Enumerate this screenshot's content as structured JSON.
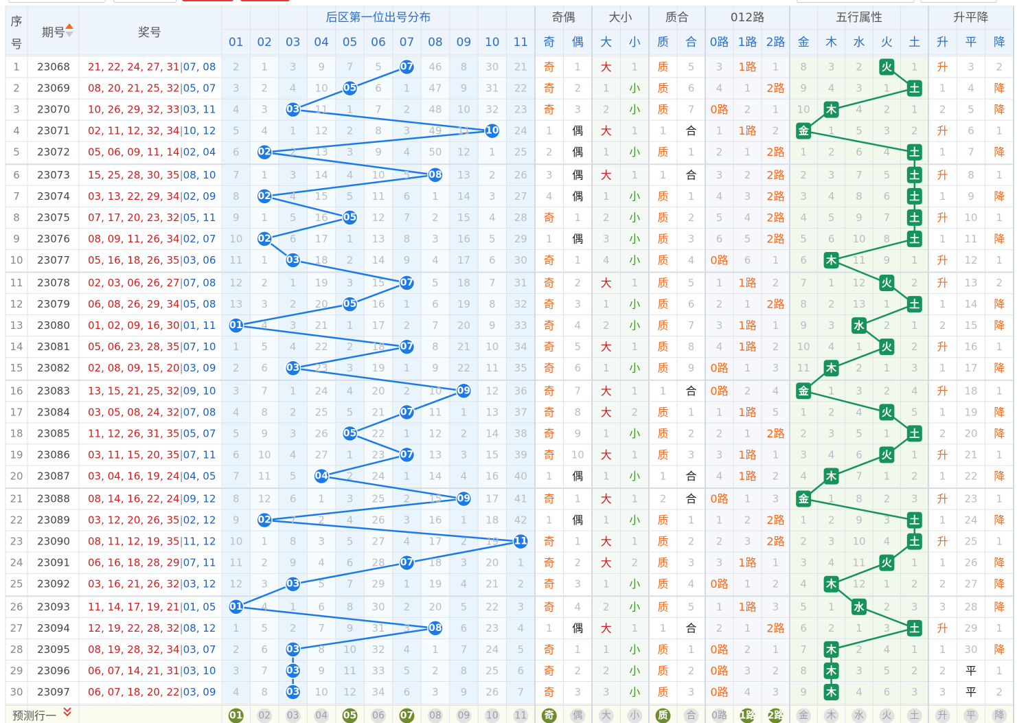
{
  "header": {
    "seq_label": "序号",
    "issue_label": "期号",
    "numbers_label": "奖号",
    "distribution_title": "后区第一位出号分布",
    "groups": [
      "奇偶",
      "大小",
      "质合",
      "012路",
      "五行属性",
      "升平降"
    ],
    "dist_cols": [
      "01",
      "02",
      "03",
      "04",
      "05",
      "06",
      "07",
      "08",
      "09",
      "10",
      "11"
    ],
    "parity_cols": [
      "奇",
      "偶"
    ],
    "size_cols": [
      "大",
      "小"
    ],
    "prime_cols": [
      "质",
      "合"
    ],
    "route_cols": [
      "0路",
      "1路",
      "2路"
    ],
    "element_cols": [
      "金",
      "木",
      "水",
      "火",
      "土"
    ],
    "trend_cols": [
      "升",
      "平",
      "降"
    ]
  },
  "rows": [
    {
      "seq": "1",
      "issue": "23068",
      "front": "21, 22, 24, 27, 31",
      "back": "07, 08",
      "d": [
        2,
        1,
        3,
        9,
        7,
        5,
        "07",
        46,
        8,
        30,
        21
      ],
      "par": [
        "奇",
        1
      ],
      "siz": [
        "大",
        1
      ],
      "pri": [
        "质",
        5
      ],
      "rt": [
        3,
        "1路",
        1
      ],
      "el": [
        8,
        3,
        2,
        "火",
        1
      ],
      "tr": [
        "升",
        3,
        2
      ]
    },
    {
      "seq": "2",
      "issue": "23069",
      "front": "08, 20, 21, 25, 32",
      "back": "05, 07",
      "d": [
        3,
        2,
        4,
        10,
        "05",
        6,
        1,
        47,
        9,
        31,
        22
      ],
      "par": [
        "奇",
        2
      ],
      "siz": [
        1,
        "小"
      ],
      "pri": [
        "质",
        6
      ],
      "rt": [
        4,
        1,
        "2路"
      ],
      "el": [
        9,
        4,
        3,
        1,
        "土"
      ],
      "tr": [
        1,
        4,
        "降"
      ]
    },
    {
      "seq": "3",
      "issue": "23070",
      "front": "10, 26, 29, 32, 33",
      "back": "03, 11",
      "d": [
        4,
        3,
        "03",
        11,
        1,
        7,
        2,
        48,
        10,
        32,
        23
      ],
      "par": [
        "奇",
        3
      ],
      "siz": [
        2,
        "小"
      ],
      "pri": [
        "质",
        7
      ],
      "rt": [
        "0路",
        2,
        1
      ],
      "el": [
        10,
        "木",
        4,
        2,
        1
      ],
      "tr": [
        2,
        5,
        "降"
      ]
    },
    {
      "seq": "4",
      "issue": "23071",
      "front": "02, 11, 12, 32, 34",
      "back": "10, 12",
      "d": [
        5,
        4,
        1,
        12,
        2,
        8,
        3,
        49,
        11,
        "10",
        24
      ],
      "par": [
        1,
        "偶"
      ],
      "siz": [
        "大",
        1
      ],
      "pri": [
        1,
        "合"
      ],
      "rt": [
        1,
        "1路",
        2
      ],
      "el": [
        "金",
        1,
        5,
        3,
        2
      ],
      "tr": [
        "升",
        6,
        1
      ]
    },
    {
      "seq": "5",
      "issue": "23072",
      "front": "05, 06, 09, 11, 14",
      "back": "02, 04",
      "d": [
        6,
        "02",
        2,
        13,
        3,
        9,
        4,
        50,
        12,
        1,
        25
      ],
      "par": [
        2,
        "偶"
      ],
      "siz": [
        1,
        "小"
      ],
      "pri": [
        "质",
        1
      ],
      "rt": [
        2,
        1,
        "2路"
      ],
      "el": [
        1,
        2,
        6,
        4,
        "土"
      ],
      "tr": [
        1,
        7,
        "降"
      ]
    },
    {
      "seq": "6",
      "issue": "23073",
      "front": "15, 25, 28, 30, 35",
      "back": "08, 10",
      "d": [
        7,
        1,
        3,
        14,
        4,
        10,
        5,
        "08",
        13,
        2,
        26
      ],
      "par": [
        3,
        "偶"
      ],
      "siz": [
        "大",
        1
      ],
      "pri": [
        1,
        "合"
      ],
      "rt": [
        3,
        2,
        "2路"
      ],
      "el": [
        2,
        3,
        7,
        5,
        "土"
      ],
      "tr": [
        "升",
        8,
        1
      ]
    },
    {
      "seq": "7",
      "issue": "23074",
      "front": "03, 13, 22, 29, 34",
      "back": "02, 09",
      "d": [
        8,
        "02",
        4,
        15,
        5,
        11,
        6,
        1,
        14,
        3,
        27
      ],
      "par": [
        4,
        "偶"
      ],
      "siz": [
        1,
        "小"
      ],
      "pri": [
        "质",
        1
      ],
      "rt": [
        4,
        3,
        "2路"
      ],
      "el": [
        3,
        4,
        8,
        6,
        "土"
      ],
      "tr": [
        1,
        9,
        "降"
      ]
    },
    {
      "seq": "8",
      "issue": "23075",
      "front": "07, 17, 20, 23, 32",
      "back": "05, 11",
      "d": [
        9,
        1,
        5,
        16,
        "05",
        12,
        7,
        2,
        15,
        4,
        28
      ],
      "par": [
        "奇",
        1
      ],
      "siz": [
        2,
        "小"
      ],
      "pri": [
        "质",
        2
      ],
      "rt": [
        5,
        4,
        "2路"
      ],
      "el": [
        4,
        5,
        9,
        7,
        "土"
      ],
      "tr": [
        "升",
        10,
        1
      ]
    },
    {
      "seq": "9",
      "issue": "23076",
      "front": "08, 09, 11, 26, 34",
      "back": "02, 07",
      "d": [
        10,
        "02",
        6,
        17,
        1,
        13,
        8,
        3,
        16,
        5,
        29
      ],
      "par": [
        1,
        "偶"
      ],
      "siz": [
        3,
        "小"
      ],
      "pri": [
        "质",
        3
      ],
      "rt": [
        6,
        5,
        "2路"
      ],
      "el": [
        5,
        6,
        10,
        8,
        "土"
      ],
      "tr": [
        1,
        11,
        "降"
      ]
    },
    {
      "seq": "10",
      "issue": "23077",
      "front": "05, 16, 18, 26, 35",
      "back": "03, 06",
      "d": [
        11,
        1,
        "03",
        18,
        2,
        14,
        9,
        4,
        17,
        6,
        30
      ],
      "par": [
        "奇",
        1
      ],
      "siz": [
        4,
        "小"
      ],
      "pri": [
        "质",
        4
      ],
      "rt": [
        "0路",
        6,
        1
      ],
      "el": [
        6,
        "木",
        11,
        9,
        1
      ],
      "tr": [
        "升",
        12,
        1
      ]
    },
    {
      "seq": "11",
      "issue": "23078",
      "front": "02, 03, 06, 26, 27",
      "back": "07, 08",
      "d": [
        12,
        2,
        1,
        19,
        3,
        15,
        "07",
        5,
        18,
        7,
        31
      ],
      "par": [
        "奇",
        2
      ],
      "siz": [
        "大",
        1
      ],
      "pri": [
        "质",
        5
      ],
      "rt": [
        1,
        "1路",
        2
      ],
      "el": [
        7,
        1,
        12,
        "火",
        2
      ],
      "tr": [
        "升",
        13,
        2
      ]
    },
    {
      "seq": "12",
      "issue": "23079",
      "front": "06, 08, 26, 29, 34",
      "back": "05, 08",
      "d": [
        13,
        3,
        2,
        20,
        "05",
        16,
        1,
        6,
        19,
        8,
        32
      ],
      "par": [
        "奇",
        3
      ],
      "siz": [
        1,
        "小"
      ],
      "pri": [
        "质",
        6
      ],
      "rt": [
        2,
        1,
        "2路"
      ],
      "el": [
        8,
        2,
        13,
        1,
        "土"
      ],
      "tr": [
        1,
        14,
        "降"
      ]
    },
    {
      "seq": "13",
      "issue": "23080",
      "front": "01, 02, 09, 16, 30",
      "back": "01, 11",
      "d": [
        "01",
        4,
        3,
        21,
        1,
        17,
        2,
        7,
        20,
        9,
        33
      ],
      "par": [
        "奇",
        4
      ],
      "siz": [
        2,
        "小"
      ],
      "pri": [
        "质",
        7
      ],
      "rt": [
        3,
        "1路",
        1
      ],
      "el": [
        9,
        3,
        "水",
        2,
        1
      ],
      "tr": [
        2,
        15,
        "降"
      ]
    },
    {
      "seq": "14",
      "issue": "23081",
      "front": "05, 06, 23, 28, 35",
      "back": "07, 10",
      "d": [
        1,
        5,
        4,
        22,
        2,
        18,
        "07",
        8,
        21,
        10,
        34
      ],
      "par": [
        "奇",
        5
      ],
      "siz": [
        "大",
        1
      ],
      "pri": [
        "质",
        8
      ],
      "rt": [
        4,
        "1路",
        2
      ],
      "el": [
        10,
        4,
        1,
        "火",
        2
      ],
      "tr": [
        "升",
        16,
        1
      ]
    },
    {
      "seq": "15",
      "issue": "23082",
      "front": "02, 08, 09, 15, 20",
      "back": "03, 09",
      "d": [
        2,
        6,
        "03",
        23,
        3,
        19,
        1,
        9,
        22,
        11,
        35
      ],
      "par": [
        "奇",
        6
      ],
      "siz": [
        1,
        "小"
      ],
      "pri": [
        "质",
        9
      ],
      "rt": [
        "0路",
        1,
        3
      ],
      "el": [
        11,
        "木",
        2,
        1,
        3
      ],
      "tr": [
        1,
        17,
        "降"
      ]
    },
    {
      "seq": "16",
      "issue": "23083",
      "front": "13, 15, 21, 25, 32",
      "back": "09, 10",
      "d": [
        3,
        7,
        1,
        24,
        4,
        20,
        2,
        10,
        "09",
        12,
        36
      ],
      "par": [
        "奇",
        7
      ],
      "siz": [
        "大",
        1
      ],
      "pri": [
        1,
        "合"
      ],
      "rt": [
        "0路",
        2,
        4
      ],
      "el": [
        "金",
        1,
        3,
        2,
        4
      ],
      "tr": [
        "升",
        18,
        1
      ]
    },
    {
      "seq": "17",
      "issue": "23084",
      "front": "03, 05, 08, 24, 32",
      "back": "07, 08",
      "d": [
        4,
        8,
        2,
        25,
        5,
        21,
        "07",
        11,
        1,
        13,
        37
      ],
      "par": [
        "奇",
        8
      ],
      "siz": [
        "大",
        2
      ],
      "pri": [
        "质",
        1
      ],
      "rt": [
        1,
        "1路",
        5
      ],
      "el": [
        1,
        2,
        4,
        "火",
        5
      ],
      "tr": [
        1,
        19,
        "降"
      ]
    },
    {
      "seq": "18",
      "issue": "23085",
      "front": "11, 12, 26, 31, 35",
      "back": "05, 07",
      "d": [
        5,
        9,
        3,
        26,
        "05",
        22,
        1,
        12,
        2,
        14,
        38
      ],
      "par": [
        "奇",
        9
      ],
      "siz": [
        1,
        "小"
      ],
      "pri": [
        "质",
        2
      ],
      "rt": [
        2,
        1,
        "2路"
      ],
      "el": [
        2,
        3,
        5,
        1,
        "土"
      ],
      "tr": [
        2,
        20,
        "降"
      ]
    },
    {
      "seq": "19",
      "issue": "23086",
      "front": "03, 11, 15, 20, 35",
      "back": "07, 11",
      "d": [
        6,
        10,
        4,
        27,
        1,
        23,
        "07",
        13,
        3,
        15,
        39
      ],
      "par": [
        "奇",
        10
      ],
      "siz": [
        "大",
        1
      ],
      "pri": [
        "质",
        3
      ],
      "rt": [
        3,
        "1路",
        1
      ],
      "el": [
        3,
        4,
        6,
        "火",
        1
      ],
      "tr": [
        "升",
        21,
        1
      ]
    },
    {
      "seq": "20",
      "issue": "23087",
      "front": "03, 04, 16, 19, 24",
      "back": "04, 05",
      "d": [
        7,
        11,
        5,
        "04",
        2,
        24,
        1,
        14,
        4,
        16,
        40
      ],
      "par": [
        1,
        "偶"
      ],
      "siz": [
        1,
        "小"
      ],
      "pri": [
        1,
        "合"
      ],
      "rt": [
        4,
        "1路",
        2
      ],
      "el": [
        4,
        "木",
        7,
        1,
        2
      ],
      "tr": [
        1,
        22,
        "降"
      ]
    },
    {
      "seq": "21",
      "issue": "23088",
      "front": "08, 14, 16, 22, 24",
      "back": "09, 12",
      "d": [
        8,
        12,
        6,
        1,
        3,
        25,
        2,
        15,
        "09",
        17,
        41
      ],
      "par": [
        "奇",
        1
      ],
      "siz": [
        "大",
        1
      ],
      "pri": [
        2,
        "合"
      ],
      "rt": [
        "0路",
        1,
        3
      ],
      "el": [
        "金",
        1,
        8,
        2,
        3
      ],
      "tr": [
        "升",
        23,
        1
      ]
    },
    {
      "seq": "22",
      "issue": "23089",
      "front": "03, 12, 20, 26, 35",
      "back": "02, 12",
      "d": [
        9,
        "02",
        7,
        2,
        4,
        26,
        3,
        16,
        1,
        18,
        42
      ],
      "par": [
        1,
        "偶"
      ],
      "siz": [
        1,
        "小"
      ],
      "pri": [
        "质",
        1
      ],
      "rt": [
        1,
        2,
        "2路"
      ],
      "el": [
        1,
        2,
        9,
        3,
        "土"
      ],
      "tr": [
        1,
        24,
        "降"
      ]
    },
    {
      "seq": "23",
      "issue": "23090",
      "front": "08, 11, 12, 19, 35",
      "back": "11, 12",
      "d": [
        10,
        1,
        8,
        3,
        5,
        27,
        4,
        17,
        2,
        19,
        "11"
      ],
      "par": [
        "奇",
        1
      ],
      "siz": [
        "大",
        1
      ],
      "pri": [
        "质",
        2
      ],
      "rt": [
        2,
        3,
        "2路"
      ],
      "el": [
        2,
        3,
        10,
        4,
        "土"
      ],
      "tr": [
        "升",
        25,
        1
      ]
    },
    {
      "seq": "24",
      "issue": "23091",
      "front": "06, 16, 18, 28, 29",
      "back": "07, 11",
      "d": [
        11,
        2,
        9,
        4,
        6,
        28,
        "07",
        18,
        3,
        20,
        1
      ],
      "par": [
        "奇",
        2
      ],
      "siz": [
        "大",
        2
      ],
      "pri": [
        "质",
        3
      ],
      "rt": [
        3,
        "1路",
        1
      ],
      "el": [
        3,
        4,
        11,
        "火",
        1
      ],
      "tr": [
        1,
        26,
        "降"
      ]
    },
    {
      "seq": "25",
      "issue": "23092",
      "front": "03, 16, 21, 26, 32",
      "back": "03, 12",
      "d": [
        12,
        3,
        "03",
        5,
        7,
        29,
        1,
        19,
        4,
        21,
        2
      ],
      "par": [
        "奇",
        3
      ],
      "siz": [
        1,
        "小"
      ],
      "pri": [
        "质",
        4
      ],
      "rt": [
        "0路",
        1,
        2
      ],
      "el": [
        4,
        "木",
        12,
        1,
        2
      ],
      "tr": [
        2,
        27,
        "降"
      ]
    },
    {
      "seq": "26",
      "issue": "23093",
      "front": "11, 14, 17, 19, 21",
      "back": "01, 05",
      "d": [
        "01",
        4,
        1,
        6,
        8,
        30,
        2,
        20,
        5,
        22,
        3
      ],
      "par": [
        "奇",
        4
      ],
      "siz": [
        2,
        "小"
      ],
      "pri": [
        "质",
        5
      ],
      "rt": [
        1,
        "1路",
        3
      ],
      "el": [
        5,
        1,
        "水",
        2,
        3
      ],
      "tr": [
        3,
        28,
        "降"
      ]
    },
    {
      "seq": "27",
      "issue": "23094",
      "front": "12, 19, 22, 28, 32",
      "back": "08, 12",
      "d": [
        1,
        5,
        2,
        7,
        9,
        31,
        3,
        "08",
        6,
        23,
        4
      ],
      "par": [
        1,
        "偶"
      ],
      "siz": [
        "大",
        1
      ],
      "pri": [
        1,
        "合"
      ],
      "rt": [
        2,
        1,
        "2路"
      ],
      "el": [
        6,
        2,
        1,
        3,
        "土"
      ],
      "tr": [
        "升",
        29,
        1
      ]
    },
    {
      "seq": "28",
      "issue": "23095",
      "front": "08, 19, 28, 32, 34",
      "back": "03, 07",
      "d": [
        2,
        6,
        "03",
        8,
        10,
        32,
        4,
        1,
        7,
        24,
        5
      ],
      "par": [
        "奇",
        1
      ],
      "siz": [
        1,
        "小"
      ],
      "pri": [
        "质",
        1
      ],
      "rt": [
        "0路",
        2,
        1
      ],
      "el": [
        7,
        "木",
        2,
        4,
        1
      ],
      "tr": [
        1,
        30,
        "降"
      ]
    },
    {
      "seq": "29",
      "issue": "23096",
      "front": "06, 07, 14, 21, 31",
      "back": "03, 10",
      "d": [
        3,
        7,
        "03",
        9,
        11,
        33,
        5,
        2,
        8,
        25,
        6
      ],
      "par": [
        "奇",
        2
      ],
      "siz": [
        2,
        "小"
      ],
      "pri": [
        "质",
        2
      ],
      "rt": [
        "0路",
        3,
        2
      ],
      "el": [
        8,
        "木",
        3,
        5,
        2
      ],
      "tr": [
        2,
        "平",
        1
      ]
    },
    {
      "seq": "30",
      "issue": "23097",
      "front": "06, 07, 18, 20, 22",
      "back": "03, 09",
      "d": [
        4,
        8,
        "03",
        10,
        12,
        34,
        6,
        3,
        9,
        26,
        7
      ],
      "par": [
        "奇",
        3
      ],
      "siz": [
        3,
        "小"
      ],
      "pri": [
        "质",
        3
      ],
      "rt": [
        "0路",
        4,
        3
      ],
      "el": [
        9,
        "木",
        4,
        6,
        3
      ],
      "tr": [
        3,
        "平",
        2
      ]
    }
  ],
  "predict": {
    "label": "预测行一",
    "dist": [
      "01",
      "02",
      "03",
      "04",
      "05",
      "06",
      "07",
      "08",
      "09",
      "10",
      "11"
    ],
    "dist_highlight": [
      "01",
      "05",
      "07"
    ],
    "par": [
      "奇",
      "偶"
    ],
    "par_highlight": [
      "奇"
    ],
    "siz": [
      "大",
      "小"
    ],
    "siz_highlight": [],
    "pri": [
      "质",
      "合"
    ],
    "pri_highlight": [
      "质"
    ],
    "rt": [
      "0路",
      "1路",
      "2路"
    ],
    "rt_highlight": [
      "1路",
      "2路"
    ],
    "el": [
      "金",
      "木",
      "水",
      "火",
      "土"
    ],
    "el_highlight": [],
    "tr": [
      "升",
      "平",
      "降"
    ],
    "tr_highlight": []
  },
  "colors": {
    "grid_line": "#dde3ea",
    "header_bg": "#eef4fb",
    "dist_bg_a": "#eaf4fd",
    "dist_bg_b": "#f6fbff",
    "el_bg": "#f1f8ec",
    "ball_blue": "#1b7ae8",
    "ball_green": "#16935c",
    "ball_olive": "#6e8b2f",
    "red_text": "#d11d1d",
    "orange_text": "#f26a1b",
    "green_text": "#3a9a1f",
    "gray_text": "#b9bec5",
    "blue_text": "#2a6fc9"
  }
}
